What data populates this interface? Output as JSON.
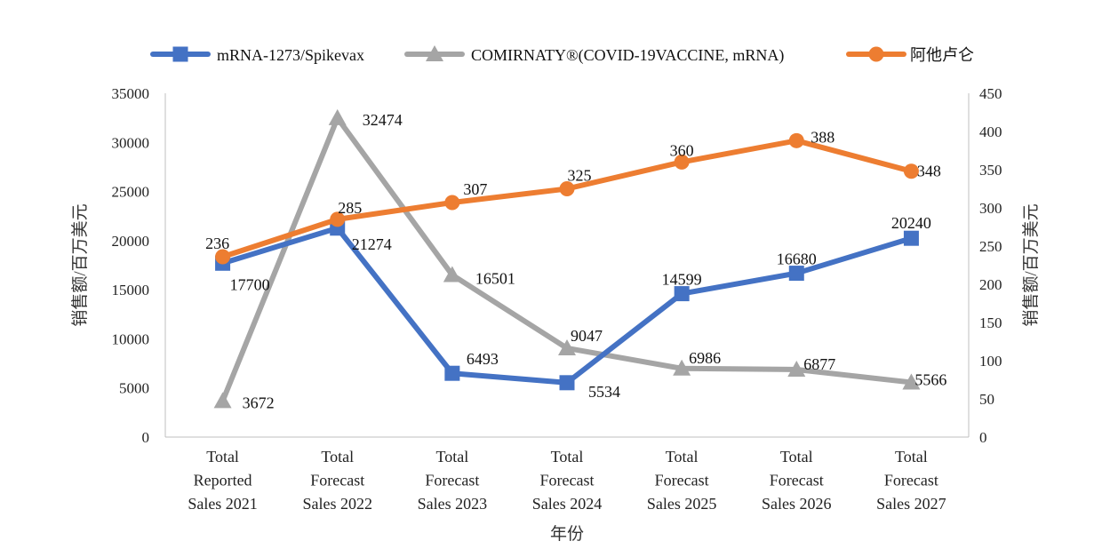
{
  "chart_data": {
    "type": "line",
    "categories": [
      [
        "Total",
        "Reported",
        "Sales 2021"
      ],
      [
        "Total",
        "Forecast",
        "Sales 2022"
      ],
      [
        "Total",
        "Forecast",
        "Sales 2023"
      ],
      [
        "Total",
        "Forecast",
        "Sales 2024"
      ],
      [
        "Total",
        "Forecast",
        "Sales 2025"
      ],
      [
        "Total",
        "Forecast",
        "Sales 2026"
      ],
      [
        "Total",
        "Forecast",
        "Sales 2027"
      ]
    ],
    "series": [
      {
        "name": "mRNA-1273/Spikevax",
        "axis": "left",
        "marker": "square",
        "color": "#4472C4",
        "values": [
          17700,
          21274,
          6493,
          5534,
          14599,
          16680,
          20240
        ],
        "labels": [
          "17700",
          "21274",
          "6493",
          "5534",
          "14599",
          "16680",
          "20240"
        ]
      },
      {
        "name": "COMIRNATY®(COVID-19VACCINE, mRNA)",
        "axis": "left",
        "marker": "triangle",
        "color": "#A5A5A5",
        "values": [
          3672,
          32474,
          16501,
          9047,
          6986,
          6877,
          5566
        ],
        "labels": [
          "3672",
          "32474",
          "16501",
          "9047",
          "6986",
          "6877",
          "5566"
        ]
      },
      {
        "name": "阿他卢仑",
        "axis": "right",
        "marker": "circle",
        "color": "#ED7D31",
        "values": [
          236,
          285,
          307,
          325,
          360,
          388,
          348
        ],
        "labels": [
          "236",
          "285",
          "307",
          "325",
          "360",
          "388",
          "348"
        ]
      }
    ],
    "y_left": {
      "label": "销售额/百万美元",
      "min": 0,
      "max": 35000,
      "ticks": [
        0,
        5000,
        10000,
        15000,
        20000,
        25000,
        30000,
        35000
      ]
    },
    "y_right": {
      "label": "销售额/百万美元",
      "min": 0,
      "max": 450,
      "ticks": [
        0,
        50,
        100,
        150,
        200,
        250,
        300,
        350,
        400,
        450
      ]
    },
    "xlabel": "年份",
    "legend": "top",
    "grid": false
  }
}
